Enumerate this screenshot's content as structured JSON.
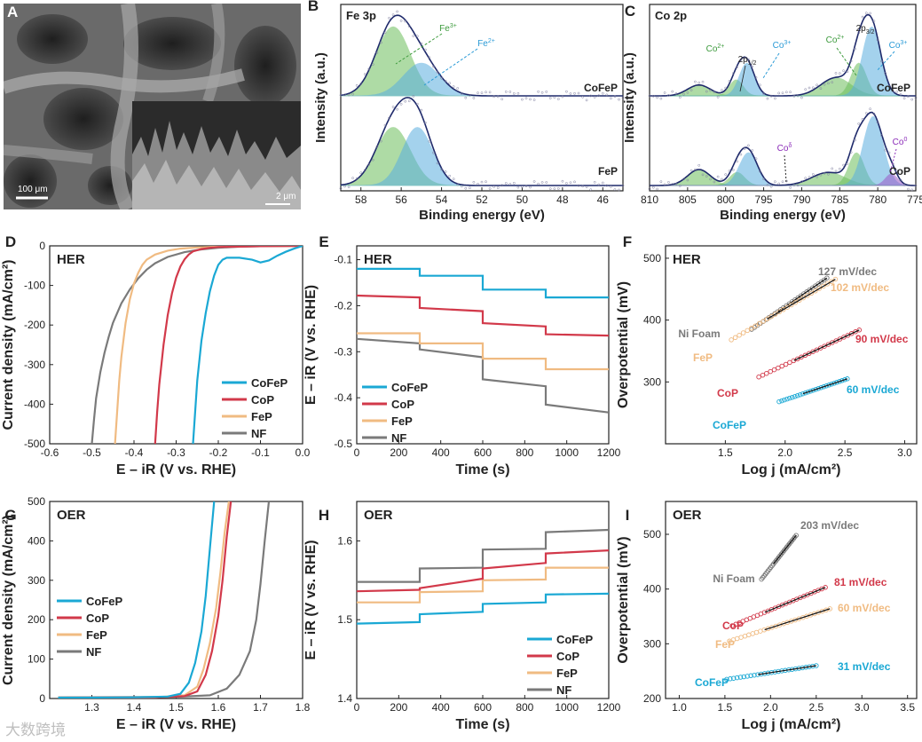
{
  "panels": {
    "A": {
      "label": "A",
      "scalebar_main": "100 μm",
      "scalebar_inset": "2 μm"
    },
    "B": {
      "label": "B",
      "core": "Fe 3p",
      "xlabel": "Binding energy (eV)",
      "ylabel": "Intensity (a.u.)",
      "xlim": [
        59,
        45
      ],
      "xticks": [
        58,
        56,
        54,
        52,
        50,
        48,
        46
      ],
      "samples": [
        "CoFeP",
        "FeP"
      ],
      "peak_labels": [
        {
          "text": "Fe3+",
          "base": "Fe",
          "sup": "3+",
          "color": "#3c9a3c",
          "energy": 56.4
        },
        {
          "text": "Fe2+",
          "base": "Fe",
          "sup": "2+",
          "color": "#2a9ad6",
          "energy": 55.0
        }
      ]
    },
    "C": {
      "label": "C",
      "core": "Co 2p",
      "xlabel": "Binding energy (eV)",
      "ylabel": "Intensity (a.u.)",
      "xlim": [
        810,
        775
      ],
      "xticks": [
        810,
        805,
        800,
        795,
        790,
        785,
        780,
        775
      ],
      "samples": [
        "CoFeP",
        "CoP"
      ],
      "annotations": [
        {
          "base": "Co",
          "sup": "2+",
          "color": "#3c9a3c"
        },
        {
          "base": "2p",
          "sub": "1/2",
          "color": "#222222"
        },
        {
          "base": "Co",
          "sup": "3+",
          "color": "#2a9ad6"
        },
        {
          "base": "Co",
          "sup": "2+",
          "color": "#3c9a3c"
        },
        {
          "base": "2p",
          "sub": "3/2",
          "color": "#222222"
        },
        {
          "base": "Co",
          "sup": "3+",
          "color": "#2a9ad6"
        },
        {
          "base": "Co",
          "sup": "δ",
          "color": "#8a2ab8"
        },
        {
          "base": "Co",
          "sup": "0",
          "color": "#8a2ab8"
        }
      ]
    }
  },
  "colors": {
    "CoFeP": "#1aa8d4",
    "CoP": "#d2394a",
    "FeP": "#f0bb82",
    "NF": "#7a7a7a",
    "green_fill": "#6cbf5c",
    "blue_fill": "#5aaee0",
    "purple_fill": "#9b59c7",
    "data_dots": "#8080a0"
  },
  "chart_data": [
    {
      "panel": "D",
      "type": "line",
      "title": "HER",
      "xlabel": "E – iR (V vs. RHE)",
      "ylabel": "Current density (mA/cm²)",
      "xlim": [
        -0.6,
        0.0
      ],
      "ylim": [
        -500,
        0
      ],
      "xticks": [
        -0.6,
        -0.5,
        -0.4,
        -0.3,
        -0.2,
        -0.1,
        0.0
      ],
      "yticks": [
        0,
        -100,
        -200,
        -300,
        -400,
        -500
      ],
      "legend": [
        "CoFeP",
        "CoP",
        "FeP",
        "NF"
      ],
      "series": [
        {
          "name": "CoFeP",
          "x": [
            -0.26,
            -0.255,
            -0.25,
            -0.24,
            -0.23,
            -0.22,
            -0.21,
            -0.2,
            -0.19,
            -0.18,
            -0.17,
            -0.15,
            -0.12,
            -0.1,
            -0.08,
            -0.06,
            -0.04,
            -0.02,
            0.0
          ],
          "y": [
            -500,
            -420,
            -340,
            -240,
            -170,
            -115,
            -75,
            -48,
            -35,
            -30,
            -30,
            -30,
            -35,
            -42,
            -37,
            -25,
            -15,
            -7,
            0
          ]
        },
        {
          "name": "CoP",
          "x": [
            -0.35,
            -0.345,
            -0.34,
            -0.33,
            -0.32,
            -0.31,
            -0.3,
            -0.29,
            -0.28,
            -0.27,
            -0.26,
            -0.24,
            -0.22,
            -0.2,
            -0.15,
            -0.1,
            0.0
          ],
          "y": [
            -500,
            -420,
            -350,
            -250,
            -175,
            -120,
            -80,
            -52,
            -34,
            -22,
            -14,
            -8,
            -5,
            -3,
            -2,
            -1,
            0
          ]
        },
        {
          "name": "FeP",
          "x": [
            -0.445,
            -0.44,
            -0.435,
            -0.43,
            -0.42,
            -0.41,
            -0.4,
            -0.39,
            -0.38,
            -0.37,
            -0.35,
            -0.32,
            -0.29,
            -0.25,
            -0.2,
            -0.15,
            0.0
          ],
          "y": [
            -500,
            -420,
            -340,
            -280,
            -195,
            -135,
            -95,
            -68,
            -48,
            -35,
            -22,
            -12,
            -7,
            -4,
            -2,
            -1,
            0
          ]
        },
        {
          "name": "NF",
          "x": [
            -0.5,
            -0.495,
            -0.49,
            -0.48,
            -0.47,
            -0.46,
            -0.45,
            -0.43,
            -0.41,
            -0.39,
            -0.37,
            -0.35,
            -0.32,
            -0.28,
            -0.24,
            -0.2,
            -0.15,
            -0.1,
            0.0
          ],
          "y": [
            -500,
            -440,
            -385,
            -320,
            -270,
            -230,
            -195,
            -145,
            -110,
            -82,
            -60,
            -44,
            -28,
            -16,
            -9,
            -5,
            -2,
            -1,
            0
          ]
        }
      ]
    },
    {
      "panel": "E",
      "type": "line",
      "title": "HER",
      "xlabel": "Time (s)",
      "ylabel": "E – iR (V vs. RHE)",
      "xlim": [
        0,
        1200
      ],
      "ylim": [
        -0.5,
        -0.07
      ],
      "xticks": [
        0,
        200,
        400,
        600,
        800,
        1000,
        1200
      ],
      "yticks": [
        -0.1,
        -0.2,
        -0.3,
        -0.4,
        -0.5
      ],
      "legend": [
        "CoFeP",
        "CoP",
        "FeP",
        "NF"
      ],
      "series": [
        {
          "name": "CoFeP",
          "x": [
            0,
            300,
            300,
            600,
            600,
            900,
            900,
            1200
          ],
          "y": [
            -0.12,
            -0.12,
            -0.135,
            -0.135,
            -0.165,
            -0.165,
            -0.182,
            -0.182
          ]
        },
        {
          "name": "CoP",
          "x": [
            0,
            300,
            300,
            600,
            600,
            900,
            900,
            1200
          ],
          "y": [
            -0.178,
            -0.182,
            -0.205,
            -0.212,
            -0.238,
            -0.245,
            -0.262,
            -0.265
          ]
        },
        {
          "name": "FeP",
          "x": [
            0,
            300,
            300,
            600,
            600,
            900,
            900,
            1200
          ],
          "y": [
            -0.26,
            -0.26,
            -0.282,
            -0.282,
            -0.315,
            -0.315,
            -0.338,
            -0.338
          ]
        },
        {
          "name": "NF",
          "x": [
            0,
            300,
            300,
            600,
            600,
            900,
            900,
            1200
          ],
          "y": [
            -0.272,
            -0.282,
            -0.295,
            -0.312,
            -0.36,
            -0.375,
            -0.415,
            -0.432
          ]
        }
      ]
    },
    {
      "panel": "F",
      "type": "scatter",
      "title": "HER",
      "xlabel": "Log j (mA/cm²)",
      "ylabel": "Overpotential (mV)",
      "xlim": [
        1.0,
        3.1
      ],
      "ylim": [
        200,
        520
      ],
      "xticks": [
        1.5,
        2.0,
        2.5,
        3.0
      ],
      "yticks": [
        300,
        400,
        500
      ],
      "series": [
        {
          "name": "Ni Foam",
          "slope_label": "127 mV/dec",
          "x_range": [
            1.72,
            2.35
          ],
          "y_range": [
            385,
            468
          ]
        },
        {
          "name": "FeP",
          "slope_label": "102 mV/dec",
          "x_range": [
            1.55,
            2.42
          ],
          "y_range": [
            368,
            466
          ]
        },
        {
          "name": "CoP",
          "slope_label": "90 mV/dec",
          "x_range": [
            1.78,
            2.62
          ],
          "y_range": [
            308,
            384
          ]
        },
        {
          "name": "CoFeP",
          "slope_label": "60 mV/dec",
          "x_range": [
            1.95,
            2.52
          ],
          "y_range": [
            268,
            305
          ]
        }
      ]
    },
    {
      "panel": "G",
      "type": "line",
      "title": "OER",
      "xlabel": "E – iR (V vs. RHE)",
      "ylabel": "Current density (mA/cm²)",
      "xlim": [
        1.2,
        1.8
      ],
      "ylim": [
        0,
        500
      ],
      "xticks": [
        1.3,
        1.4,
        1.5,
        1.6,
        1.7,
        1.8
      ],
      "yticks": [
        0,
        100,
        200,
        300,
        400,
        500
      ],
      "legend": [
        "CoFeP",
        "CoP",
        "FeP",
        "NF"
      ],
      "series": [
        {
          "name": "CoFeP",
          "x": [
            1.22,
            1.4,
            1.48,
            1.51,
            1.53,
            1.545,
            1.56,
            1.57,
            1.58,
            1.59
          ],
          "y": [
            2,
            3,
            5,
            12,
            40,
            90,
            170,
            260,
            380,
            500
          ]
        },
        {
          "name": "CoP",
          "x": [
            1.22,
            1.45,
            1.52,
            1.55,
            1.57,
            1.585,
            1.6,
            1.61,
            1.62,
            1.63
          ],
          "y": [
            2,
            3,
            6,
            18,
            60,
            120,
            210,
            300,
            410,
            500
          ]
        },
        {
          "name": "FeP",
          "x": [
            1.22,
            1.45,
            1.52,
            1.55,
            1.565,
            1.58,
            1.595,
            1.605,
            1.615,
            1.625
          ],
          "y": [
            2,
            3,
            8,
            30,
            75,
            140,
            230,
            320,
            420,
            500
          ]
        },
        {
          "name": "NF",
          "x": [
            1.22,
            1.5,
            1.58,
            1.62,
            1.65,
            1.675,
            1.69,
            1.7,
            1.71,
            1.72
          ],
          "y": [
            3,
            4,
            8,
            25,
            60,
            120,
            200,
            290,
            400,
            500
          ]
        }
      ]
    },
    {
      "panel": "H",
      "type": "line",
      "title": "OER",
      "xlabel": "Time (s)",
      "ylabel": "E – iR (V vs. RHE)",
      "xlim": [
        0,
        1200
      ],
      "ylim": [
        1.4,
        1.65
      ],
      "xticks": [
        0,
        200,
        400,
        600,
        800,
        1000,
        1200
      ],
      "yticks": [
        1.4,
        1.5,
        1.6
      ],
      "legend": [
        "CoFeP",
        "CoP",
        "FeP",
        "NF"
      ],
      "series": [
        {
          "name": "CoFeP",
          "x": [
            0,
            300,
            300,
            600,
            600,
            900,
            900,
            1200
          ],
          "y": [
            1.495,
            1.497,
            1.507,
            1.51,
            1.52,
            1.522,
            1.532,
            1.533
          ]
        },
        {
          "name": "CoP",
          "x": [
            0,
            300,
            300,
            600,
            600,
            900,
            900,
            1200
          ],
          "y": [
            1.536,
            1.538,
            1.54,
            1.552,
            1.565,
            1.572,
            1.584,
            1.588
          ]
        },
        {
          "name": "FeP",
          "x": [
            0,
            300,
            300,
            600,
            600,
            900,
            900,
            1200
          ],
          "y": [
            1.522,
            1.522,
            1.535,
            1.536,
            1.55,
            1.551,
            1.566,
            1.566
          ]
        },
        {
          "name": "NF",
          "x": [
            0,
            300,
            300,
            600,
            600,
            900,
            900,
            1200
          ],
          "y": [
            1.548,
            1.548,
            1.565,
            1.566,
            1.589,
            1.59,
            1.611,
            1.614
          ]
        }
      ]
    },
    {
      "panel": "I",
      "type": "scatter",
      "title": "OER",
      "xlabel": "Log j (mA/cm²)",
      "ylabel": "Overpotential (mV)",
      "xlim": [
        0.85,
        3.6
      ],
      "ylim": [
        200,
        560
      ],
      "xticks": [
        1.0,
        1.5,
        2.0,
        2.5,
        3.0,
        3.5
      ],
      "yticks": [
        200,
        300,
        400,
        500
      ],
      "series": [
        {
          "name": "Ni Foam",
          "slope_label": "203 mV/dec",
          "x_range": [
            1.9,
            2.28
          ],
          "y_range": [
            418,
            498
          ]
        },
        {
          "name": "CoP",
          "slope_label": "81 mV/dec",
          "x_range": [
            1.58,
            2.6
          ],
          "y_range": [
            333,
            403
          ]
        },
        {
          "name": "FeP",
          "slope_label": "60 mV/dec",
          "x_range": [
            1.55,
            2.65
          ],
          "y_range": [
            305,
            364
          ]
        },
        {
          "name": "CoFeP",
          "slope_label": "31 mV/dec",
          "x_range": [
            1.52,
            2.5
          ],
          "y_range": [
            235,
            260
          ]
        }
      ]
    }
  ],
  "watermark": "大数跨境"
}
